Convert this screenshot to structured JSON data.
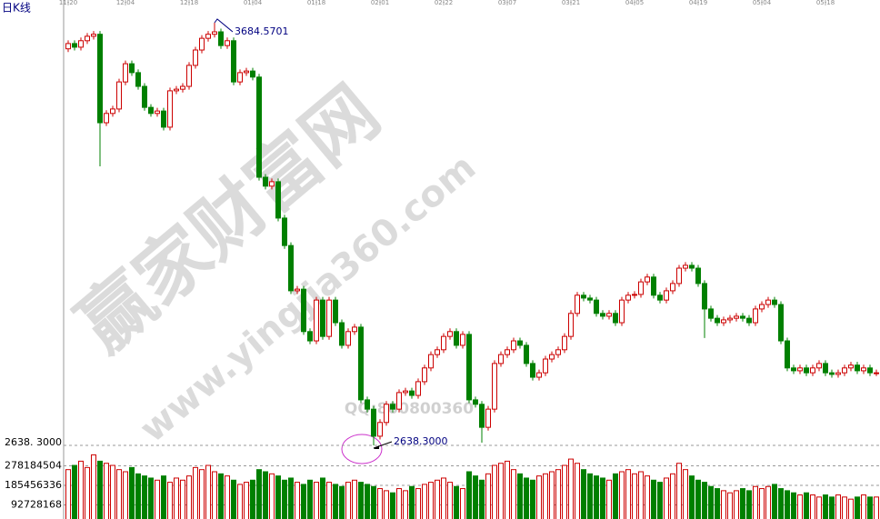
{
  "chart_data": {
    "type": "candlestick",
    "title": "日K线",
    "categories": [
      "11-20",
      null,
      null,
      null,
      null,
      null,
      null,
      null,
      null,
      "12-04",
      null,
      null,
      null,
      null,
      null,
      null,
      null,
      null,
      null,
      "12-18",
      null,
      null,
      null,
      null,
      null,
      null,
      null,
      null,
      null,
      "01-04",
      null,
      null,
      null,
      null,
      null,
      null,
      null,
      null,
      null,
      "01-18",
      null,
      null,
      null,
      null,
      null,
      null,
      null,
      null,
      null,
      "02-01",
      null,
      null,
      null,
      null,
      null,
      null,
      null,
      null,
      null,
      "02-22",
      null,
      null,
      null,
      null,
      null,
      null,
      null,
      null,
      null,
      "03-07",
      null,
      null,
      null,
      null,
      null,
      null,
      null,
      null,
      null,
      "03-21",
      null,
      null,
      null,
      null,
      null,
      null,
      null,
      null,
      null,
      "04-05",
      null,
      null,
      null,
      null,
      null,
      null,
      null,
      null,
      null,
      "04-19",
      null,
      null,
      null,
      null,
      null,
      null,
      null,
      null,
      null,
      "05-04",
      null,
      null,
      null,
      null,
      null,
      null,
      null,
      null,
      null,
      "05-18",
      null,
      null,
      null,
      null,
      null,
      null,
      null,
      null
    ],
    "open": [
      3620,
      3633,
      3624,
      3640,
      3651,
      3656,
      3437,
      3460,
      3471,
      3538,
      3583,
      3561,
      3527,
      3475,
      3460,
      3466,
      3426,
      3516,
      3520,
      3527,
      3579,
      3617,
      3646,
      3656,
      3662,
      3628,
      3640,
      3538,
      3561,
      3565,
      3550,
      3302,
      3280,
      3291,
      3201,
      3133,
      3021,
      3025,
      2920,
      2897,
      2998,
      2908,
      2998,
      2942,
      2886,
      2920,
      2931,
      2751,
      2728,
      2661,
      2695,
      2740,
      2728,
      2769,
      2773,
      2762,
      2796,
      2830,
      2863,
      2875,
      2908,
      2920,
      2886,
      2913,
      2751,
      2740,
      2683,
      2728,
      2841,
      2863,
      2875,
      2897,
      2886,
      2841,
      2807,
      2818,
      2852,
      2863,
      2875,
      2908,
      2965,
      3010,
      3003,
      2998,
      2965,
      2958,
      2965,
      2942,
      2998,
      3010,
      3012,
      3043,
      3055,
      3010,
      2998,
      3021,
      3039,
      3077,
      3084,
      3077,
      3039,
      2976,
      2953,
      2942,
      2949,
      2953,
      2958,
      2953,
      2942,
      2976,
      2987,
      2998,
      2987,
      2897,
      2830,
      2823,
      2830,
      2818,
      2830,
      2841,
      2818,
      2814,
      2818,
      2830,
      2837,
      2823,
      2830,
      2818
    ],
    "close": [
      3633,
      3624,
      3640,
      3651,
      3656,
      3437,
      3460,
      3471,
      3538,
      3583,
      3561,
      3527,
      3475,
      3460,
      3466,
      3426,
      3516,
      3520,
      3527,
      3579,
      3617,
      3646,
      3656,
      3662,
      3628,
      3640,
      3538,
      3561,
      3565,
      3550,
      3302,
      3280,
      3291,
      3201,
      3133,
      3021,
      3025,
      2920,
      2897,
      2998,
      2908,
      2998,
      2942,
      2886,
      2920,
      2931,
      2751,
      2728,
      2661,
      2695,
      2740,
      2728,
      2769,
      2773,
      2762,
      2796,
      2830,
      2863,
      2875,
      2908,
      2920,
      2886,
      2913,
      2751,
      2740,
      2683,
      2728,
      2841,
      2863,
      2875,
      2897,
      2886,
      2841,
      2807,
      2818,
      2852,
      2863,
      2875,
      2908,
      2965,
      3010,
      3003,
      2998,
      2965,
      2958,
      2965,
      2942,
      2998,
      3010,
      3012,
      3043,
      3055,
      3010,
      2998,
      3021,
      3039,
      3077,
      3084,
      3077,
      3039,
      2976,
      2953,
      2942,
      2949,
      2953,
      2958,
      2953,
      2942,
      2976,
      2987,
      2998,
      2987,
      2897,
      2830,
      2823,
      2830,
      2818,
      2830,
      2841,
      2818,
      2814,
      2818,
      2830,
      2837,
      2823,
      2830,
      2818,
      2818
    ],
    "high": [
      3641,
      3641,
      3648,
      3659,
      3664,
      3664,
      3468,
      3479,
      3546,
      3591,
      3591,
      3569,
      3535,
      3483,
      3474,
      3474,
      3524,
      3528,
      3535,
      3587,
      3625,
      3654,
      3664,
      3684.5701,
      3670,
      3648,
      3648,
      3569,
      3573,
      3573,
      3558,
      3310,
      3299,
      3299,
      3209,
      3141,
      3033,
      3033,
      2928,
      3006,
      3006,
      3006,
      3006,
      2950,
      2928,
      2939,
      2939,
      2759,
      2736,
      2703,
      2748,
      2748,
      2777,
      2781,
      2781,
      2804,
      2838,
      2871,
      2883,
      2916,
      2928,
      2928,
      2921,
      2921,
      2759,
      2748,
      2736,
      2849,
      2871,
      2883,
      2905,
      2905,
      2894,
      2849,
      2826,
      2860,
      2871,
      2883,
      2916,
      2973,
      3018,
      3018,
      3011,
      3006,
      2973,
      2973,
      2973,
      3006,
      3018,
      3020,
      3051,
      3063,
      3063,
      3018,
      3029,
      3047,
      3085,
      3092,
      3092,
      3085,
      3047,
      2984,
      2961,
      2957,
      2961,
      2966,
      2966,
      2961,
      2984,
      2995,
      3006,
      3006,
      2995,
      2905,
      2838,
      2838,
      2838,
      2838,
      2849,
      2849,
      2826,
      2826,
      2838,
      2845,
      2845,
      2838,
      2838,
      2826
    ],
    "low": [
      3612,
      3616,
      3616,
      3632,
      3643,
      3329,
      3429,
      3452,
      3463,
      3530,
      3553,
      3519,
      3467,
      3452,
      3452,
      3418,
      3418,
      3508,
      3512,
      3519,
      3571,
      3609,
      3638,
      3648,
      3620,
      3620,
      3530,
      3530,
      3553,
      3542,
      3294,
      3272,
      3272,
      3193,
      3125,
      3013,
      3013,
      2912,
      2889,
      2889,
      2900,
      2900,
      2934,
      2878,
      2878,
      2912,
      2743,
      2720,
      2638.3,
      2653,
      2687,
      2720,
      2720,
      2761,
      2754,
      2754,
      2788,
      2822,
      2855,
      2867,
      2900,
      2878,
      2878,
      2743,
      2732,
      2645,
      2675,
      2720,
      2833,
      2855,
      2867,
      2878,
      2833,
      2799,
      2799,
      2810,
      2844,
      2855,
      2867,
      2900,
      2957,
      2995,
      2990,
      2957,
      2950,
      2950,
      2934,
      2934,
      2990,
      3002,
      3004,
      3035,
      3002,
      2990,
      2990,
      3013,
      3031,
      3069,
      3069,
      3031,
      2904,
      2945,
      2934,
      2934,
      2941,
      2945,
      2945,
      2934,
      2934,
      2968,
      2979,
      2979,
      2889,
      2822,
      2815,
      2815,
      2810,
      2810,
      2822,
      2810,
      2806,
      2806,
      2810,
      2822,
      2815,
      2815,
      2810,
      2810
    ],
    "volume": [
      260000000,
      280000000,
      300000000,
      270000000,
      330000000,
      300000000,
      290000000,
      280000000,
      260000000,
      250000000,
      270000000,
      240000000,
      230000000,
      220000000,
      210000000,
      230000000,
      200000000,
      220000000,
      210000000,
      230000000,
      270000000,
      260000000,
      280000000,
      250000000,
      240000000,
      230000000,
      210000000,
      190000000,
      200000000,
      210000000,
      260000000,
      250000000,
      240000000,
      230000000,
      210000000,
      220000000,
      200000000,
      190000000,
      210000000,
      200000000,
      220000000,
      200000000,
      190000000,
      180000000,
      200000000,
      210000000,
      200000000,
      190000000,
      180000000,
      170000000,
      160000000,
      150000000,
      170000000,
      160000000,
      180000000,
      170000000,
      190000000,
      200000000,
      210000000,
      220000000,
      200000000,
      180000000,
      170000000,
      250000000,
      230000000,
      210000000,
      240000000,
      280000000,
      290000000,
      300000000,
      260000000,
      240000000,
      220000000,
      210000000,
      230000000,
      240000000,
      250000000,
      260000000,
      280000000,
      310000000,
      290000000,
      260000000,
      240000000,
      230000000,
      220000000,
      210000000,
      240000000,
      250000000,
      260000000,
      240000000,
      250000000,
      230000000,
      210000000,
      200000000,
      220000000,
      240000000,
      290000000,
      260000000,
      230000000,
      210000000,
      200000000,
      180000000,
      170000000,
      160000000,
      150000000,
      160000000,
      170000000,
      160000000,
      180000000,
      170000000,
      180000000,
      190000000,
      170000000,
      160000000,
      150000000,
      140000000,
      150000000,
      140000000,
      130000000,
      140000000,
      130000000,
      140000000,
      130000000,
      120000000,
      130000000,
      140000000,
      130000000,
      130000000
    ],
    "up_color": "#cc0000",
    "down_color": "#008000",
    "ylim": [
      2638.3,
      3722.8
    ],
    "yticks": [
      {
        "value": 2638.3,
        "label": "2638. 3000"
      }
    ],
    "y2lim": [
      0,
      375000000
    ],
    "y2ticks": [
      92728168,
      185456336,
      278184504
    ],
    "annotations": [
      "3684.5701",
      "2638.3000"
    ],
    "watermark": [
      "赢家财富网",
      "www.yingjia360.com",
      "QQ:800800360"
    ]
  }
}
